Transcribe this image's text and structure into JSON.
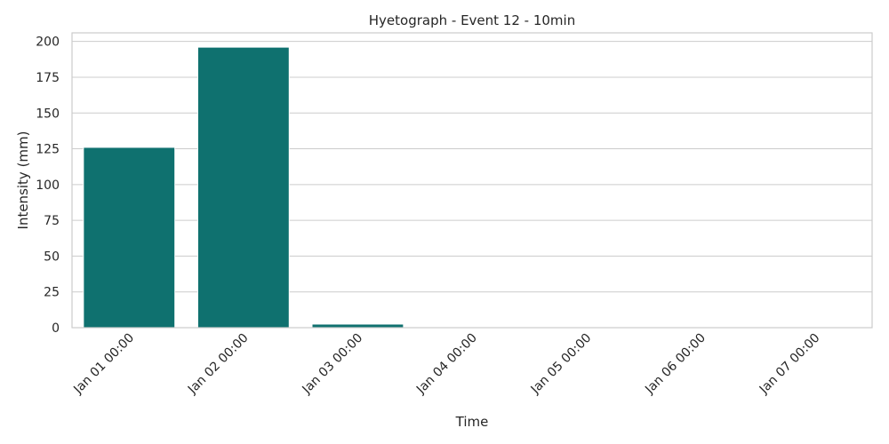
{
  "chart_data": {
    "type": "bar",
    "title": "Hyetograph - Event 12 - 10min",
    "xlabel": "Time",
    "ylabel": "Intensity (mm)",
    "categories": [
      "Jan 01 00:00",
      "Jan 02 00:00",
      "Jan 03 00:00",
      "Jan 04 00:00",
      "Jan 05 00:00",
      "Jan 06 00:00",
      "Jan 07 00:00"
    ],
    "values": [
      126,
      196,
      2.5,
      0,
      0,
      0,
      0
    ],
    "ylim": [
      0,
      206
    ],
    "yticks": [
      0,
      25,
      50,
      75,
      100,
      125,
      150,
      175,
      200
    ],
    "grid": true,
    "bar_color": "#0f716f",
    "grid_color": "#cccccc"
  }
}
